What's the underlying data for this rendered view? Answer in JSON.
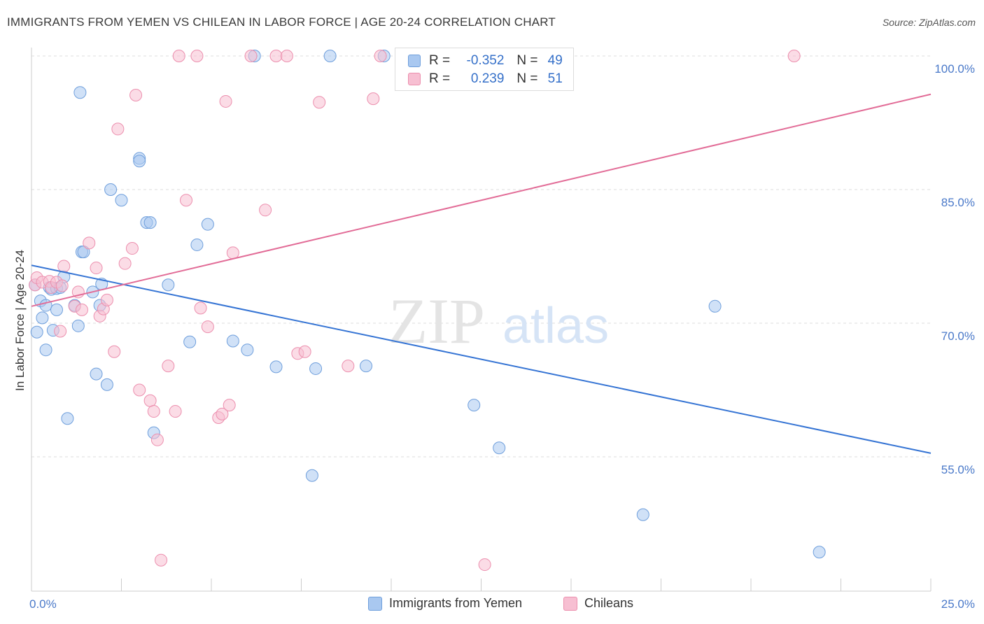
{
  "title": "IMMIGRANTS FROM YEMEN VS CHILEAN IN LABOR FORCE | AGE 20-24 CORRELATION CHART",
  "source": "Source: ZipAtlas.com",
  "watermark": {
    "zip": "ZIP",
    "atlas": "atlas"
  },
  "colors": {
    "blue_fill": "#a9c8f0",
    "blue_stroke": "#6f9fdc",
    "blue_line": "#3574d4",
    "pink_fill": "#f7bfd2",
    "pink_stroke": "#ec8fae",
    "pink_line": "#e26c97",
    "tick_text": "#4a79c9",
    "grid": "#dddddd"
  },
  "stats": [
    {
      "r_label": "R =",
      "r_value": "-0.352",
      "n_label": "N =",
      "n_value": "49"
    },
    {
      "r_label": "R =",
      "r_value": "0.239",
      "n_label": "N =",
      "n_value": "51"
    }
  ],
  "chart_data": {
    "type": "scatter",
    "title": "IMMIGRANTS FROM YEMEN VS CHILEAN IN LABOR FORCE | AGE 20-24 CORRELATION CHART",
    "xlabel": "",
    "ylabel": "In Labor Force | Age 20-24",
    "xlim": [
      0,
      25
    ],
    "ylim": [
      40,
      102
    ],
    "x_tick_labels": [
      {
        "value": 0,
        "label": "0.0%"
      },
      {
        "value": 25,
        "label": "25.0%"
      }
    ],
    "y_tick_labels": [
      {
        "value": 100,
        "label": "100.0%"
      },
      {
        "value": 85,
        "label": "85.0%"
      },
      {
        "value": 70,
        "label": "70.0%"
      },
      {
        "value": 55,
        "label": "55.0%"
      }
    ],
    "y_gridlines": [
      100,
      85,
      70,
      55
    ],
    "legend": [
      "Immigrants from Yemen",
      "Chileans"
    ],
    "series": [
      {
        "name": "Immigrants from Yemen",
        "points": [
          [
            0.1,
            74.3
          ],
          [
            0.15,
            69.0
          ],
          [
            0.25,
            72.5
          ],
          [
            0.3,
            70.6
          ],
          [
            0.4,
            72.0
          ],
          [
            0.4,
            67.0
          ],
          [
            0.5,
            74.0
          ],
          [
            0.55,
            73.8
          ],
          [
            0.6,
            69.2
          ],
          [
            0.7,
            71.5
          ],
          [
            0.7,
            73.9
          ],
          [
            0.8,
            74.0
          ],
          [
            0.9,
            75.2
          ],
          [
            1.0,
            59.3
          ],
          [
            1.2,
            72.0
          ],
          [
            1.3,
            69.7
          ],
          [
            1.35,
            95.9
          ],
          [
            1.4,
            78.0
          ],
          [
            1.45,
            78.0
          ],
          [
            1.7,
            73.5
          ],
          [
            1.8,
            64.3
          ],
          [
            1.9,
            72.0
          ],
          [
            1.95,
            74.4
          ],
          [
            2.1,
            63.1
          ],
          [
            2.2,
            85.0
          ],
          [
            2.5,
            83.8
          ],
          [
            3.0,
            88.5
          ],
          [
            3.0,
            88.2
          ],
          [
            3.2,
            81.3
          ],
          [
            3.3,
            81.3
          ],
          [
            3.4,
            57.7
          ],
          [
            3.8,
            74.3
          ],
          [
            4.4,
            67.9
          ],
          [
            4.6,
            78.8
          ],
          [
            4.9,
            81.1
          ],
          [
            5.6,
            68.0
          ],
          [
            6.2,
            100.0
          ],
          [
            6.0,
            67.0
          ],
          [
            6.8,
            65.1
          ],
          [
            7.8,
            52.9
          ],
          [
            7.9,
            64.9
          ],
          [
            8.3,
            100.0
          ],
          [
            9.3,
            65.2
          ],
          [
            9.8,
            100.0
          ],
          [
            12.3,
            60.8
          ],
          [
            13.0,
            56.0
          ],
          [
            17.0,
            48.5
          ],
          [
            19.0,
            71.9
          ],
          [
            21.9,
            44.3
          ]
        ]
      },
      {
        "name": "Chileans",
        "points": [
          [
            0.1,
            74.3
          ],
          [
            0.15,
            75.1
          ],
          [
            0.3,
            74.6
          ],
          [
            0.5,
            74.7
          ],
          [
            0.55,
            74.0
          ],
          [
            0.7,
            74.6
          ],
          [
            0.8,
            69.1
          ],
          [
            0.85,
            74.2
          ],
          [
            0.9,
            76.4
          ],
          [
            1.2,
            71.9
          ],
          [
            1.3,
            73.5
          ],
          [
            1.4,
            71.5
          ],
          [
            1.6,
            79.0
          ],
          [
            1.8,
            76.2
          ],
          [
            1.9,
            70.8
          ],
          [
            2.0,
            71.6
          ],
          [
            2.1,
            72.6
          ],
          [
            2.3,
            66.8
          ],
          [
            2.4,
            91.8
          ],
          [
            2.6,
            76.7
          ],
          [
            2.8,
            78.4
          ],
          [
            2.9,
            95.6
          ],
          [
            3.0,
            62.5
          ],
          [
            3.3,
            61.3
          ],
          [
            3.4,
            60.1
          ],
          [
            3.5,
            56.9
          ],
          [
            3.6,
            43.4
          ],
          [
            3.8,
            65.2
          ],
          [
            4.0,
            60.1
          ],
          [
            4.1,
            100.0
          ],
          [
            4.3,
            83.8
          ],
          [
            4.6,
            100.0
          ],
          [
            4.7,
            71.7
          ],
          [
            4.9,
            69.6
          ],
          [
            5.2,
            59.4
          ],
          [
            5.3,
            59.8
          ],
          [
            5.4,
            94.9
          ],
          [
            5.5,
            60.8
          ],
          [
            5.6,
            77.9
          ],
          [
            6.1,
            100.0
          ],
          [
            6.5,
            82.7
          ],
          [
            6.8,
            100.0
          ],
          [
            7.1,
            100.0
          ],
          [
            7.4,
            66.6
          ],
          [
            7.6,
            66.8
          ],
          [
            8.0,
            94.8
          ],
          [
            8.8,
            65.2
          ],
          [
            9.5,
            95.2
          ],
          [
            9.7,
            100.0
          ],
          [
            12.6,
            42.9
          ],
          [
            21.2,
            100.0
          ]
        ]
      }
    ],
    "trend_lines": [
      {
        "series": "Immigrants from Yemen",
        "x": [
          0,
          25
        ],
        "y": [
          76.5,
          55.4
        ]
      },
      {
        "series": "Chileans",
        "x": [
          0,
          25
        ],
        "y": [
          71.9,
          95.7
        ]
      }
    ]
  }
}
